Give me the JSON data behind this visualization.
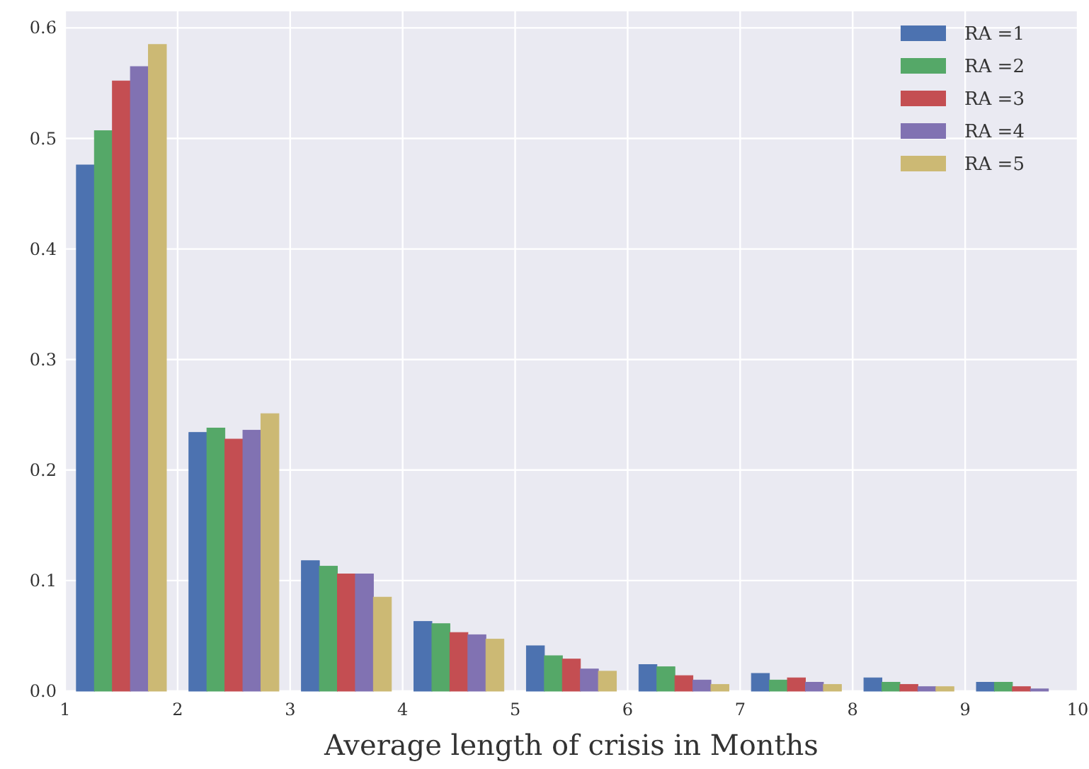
{
  "chart_data": {
    "type": "histogram",
    "xlabel": "Average length of crisis in Months",
    "bins": [
      1,
      2,
      3,
      4,
      5,
      6,
      7,
      8,
      9,
      10
    ],
    "series": [
      {
        "name": "RA =1",
        "color": "#4c72b0",
        "values": [
          0.476,
          0.234,
          0.118,
          0.063,
          0.041,
          0.024,
          0.016,
          0.012,
          0.008
        ]
      },
      {
        "name": "RA =2",
        "color": "#55a868",
        "values": [
          0.507,
          0.238,
          0.113,
          0.061,
          0.032,
          0.022,
          0.01,
          0.008,
          0.008
        ]
      },
      {
        "name": "RA =3",
        "color": "#c44e52",
        "values": [
          0.552,
          0.228,
          0.106,
          0.053,
          0.029,
          0.014,
          0.012,
          0.006,
          0.004
        ]
      },
      {
        "name": "RA =4",
        "color": "#8172b2",
        "values": [
          0.565,
          0.236,
          0.106,
          0.051,
          0.02,
          0.01,
          0.008,
          0.004,
          0.002
        ]
      },
      {
        "name": "RA =5",
        "color": "#ccb974",
        "values": [
          0.585,
          0.251,
          0.085,
          0.047,
          0.018,
          0.006,
          0.006,
          0.004,
          0
        ]
      }
    ],
    "xlim": [
      1,
      10
    ],
    "ylim": [
      0,
      0.615
    ],
    "xticks": [
      1,
      2,
      3,
      4,
      5,
      6,
      7,
      8,
      9,
      10
    ],
    "yticks": [
      {
        "value": 0,
        "label": "0.0"
      },
      0.1,
      0.2,
      0.3,
      0.4,
      0.5,
      0.6
    ],
    "grid": true,
    "legend": "top right"
  }
}
